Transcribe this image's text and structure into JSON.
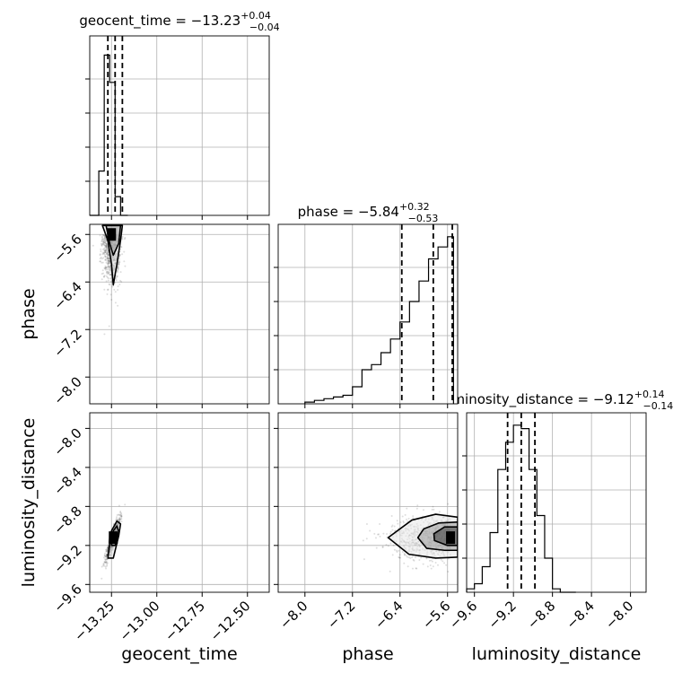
{
  "chart_data": {
    "type": "corner",
    "parameters": [
      "geocent_time",
      "phase",
      "luminosity_distance"
    ],
    "axis_labels": {
      "x": [
        "geocent_time",
        "phase",
        "luminosity_distance"
      ],
      "y": [
        "phase",
        "luminosity_distance"
      ]
    },
    "ranges": {
      "geocent_time": [
        -13.37,
        -12.38
      ],
      "phase": [
        -8.45,
        -5.43
      ],
      "luminosity_distance": [
        -9.68,
        -7.84
      ]
    },
    "ticks": {
      "geocent_time": [
        "-13.25",
        "-13.00",
        "-12.75",
        "-12.50"
      ],
      "phase": [
        "-8.0",
        "-7.2",
        "-6.4",
        "-5.6"
      ],
      "luminosity_distance": [
        "-9.6",
        "-9.2",
        "-8.8",
        "-8.4",
        "-8.0"
      ]
    },
    "tick_values": {
      "geocent_time": [
        -13.25,
        -13.0,
        -12.75,
        -12.5
      ],
      "phase": [
        -8.0,
        -7.2,
        -6.4,
        -5.6
      ],
      "luminosity_distance": [
        -9.6,
        -9.2,
        -8.8,
        -8.4,
        -8.0
      ]
    },
    "summary": {
      "geocent_time": {
        "name": "geocent_time",
        "median": "−13.23",
        "plus": "+0.04",
        "minus": "−0.04"
      },
      "phase": {
        "name": "phase",
        "median": "−5.84",
        "plus": "+0.32",
        "minus": "−0.53"
      },
      "luminosity_distance": {
        "name": "luminosity_distance",
        "median": "−9.12",
        "plus": "+0.14",
        "minus": "−0.14"
      }
    },
    "quantile_lines": {
      "geocent_time": [
        -13.27,
        -13.23,
        -13.19
      ],
      "phase": [
        -6.37,
        -5.84,
        -5.52
      ],
      "luminosity_distance": [
        -9.26,
        -9.12,
        -8.98
      ]
    },
    "histograms": {
      "geocent_time": {
        "edges": [
          -13.37,
          -13.32,
          -13.29,
          -13.26,
          -13.23,
          -13.2,
          -13.16
        ],
        "counts": [
          0.0,
          0.26,
          0.94,
          0.78,
          0.11,
          0.0
        ]
      },
      "phase": {
        "edges": [
          -8.0,
          -7.84,
          -7.68,
          -7.52,
          -7.36,
          -7.2,
          -7.04,
          -6.88,
          -6.72,
          -6.56,
          -6.4,
          -6.24,
          -6.08,
          -5.92,
          -5.76,
          -5.6,
          -5.5
        ],
        "counts": [
          0.01,
          0.02,
          0.03,
          0.04,
          0.05,
          0.1,
          0.2,
          0.23,
          0.3,
          0.38,
          0.48,
          0.6,
          0.72,
          0.85,
          0.92,
          0.98
        ]
      },
      "luminosity_distance": {
        "edges": [
          -9.68,
          -9.6,
          -9.52,
          -9.44,
          -9.36,
          -9.28,
          -9.2,
          -9.12,
          -9.04,
          -8.96,
          -8.88,
          -8.8,
          -8.72,
          -8.64,
          -8.56
        ],
        "counts": [
          0.02,
          0.05,
          0.15,
          0.35,
          0.72,
          0.88,
          0.98,
          0.96,
          0.72,
          0.45,
          0.2,
          0.02,
          0.0,
          0.0
        ]
      }
    },
    "contours": {
      "phase_vs_geocent_time": {
        "x": "geocent_time",
        "y": "phase",
        "peak": [
          -13.25,
          -5.6
        ],
        "levels": [
          [
            [
              -13.3,
              -5.45
            ],
            [
              -13.27,
              -5.7
            ],
            [
              -13.25,
              -6.1
            ],
            [
              -13.24,
              -6.45
            ],
            [
              -13.22,
              -6.1
            ],
            [
              -13.2,
              -5.7
            ],
            [
              -13.19,
              -5.45
            ]
          ],
          [
            [
              -13.28,
              -5.45
            ],
            [
              -13.26,
              -5.75
            ],
            [
              -13.24,
              -5.95
            ],
            [
              -13.21,
              -5.75
            ],
            [
              -13.2,
              -5.45
            ]
          ]
        ]
      },
      "luminosity_distance_vs_geocent_time": {
        "x": "geocent_time",
        "y": "luminosity_distance",
        "peak": [
          -13.24,
          -9.12
        ],
        "levels": [
          [
            [
              -13.27,
              -9.33
            ],
            [
              -13.25,
              -9.05
            ],
            [
              -13.22,
              -8.95
            ],
            [
              -13.2,
              -8.98
            ],
            [
              -13.21,
              -9.1
            ],
            [
              -13.24,
              -9.33
            ]
          ],
          [
            [
              -13.25,
              -9.2
            ],
            [
              -13.24,
              -9.05
            ],
            [
              -13.22,
              -9.0
            ],
            [
              -13.21,
              -9.06
            ],
            [
              -13.23,
              -9.2
            ]
          ]
        ]
      },
      "luminosity_distance_vs_phase": {
        "x": "phase",
        "y": "luminosity_distance",
        "peak": [
          -5.55,
          -9.12
        ],
        "levels": [
          [
            [
              -5.43,
              -8.91
            ],
            [
              -5.8,
              -8.88
            ],
            [
              -6.2,
              -8.94
            ],
            [
              -6.6,
              -9.12
            ],
            [
              -6.25,
              -9.29
            ],
            [
              -5.8,
              -9.33
            ],
            [
              -5.43,
              -9.32
            ]
          ],
          [
            [
              -5.43,
              -8.96
            ],
            [
              -5.75,
              -8.97
            ],
            [
              -6.0,
              -9.03
            ],
            [
              -6.1,
              -9.12
            ],
            [
              -5.95,
              -9.23
            ],
            [
              -5.65,
              -9.25
            ],
            [
              -5.43,
              -9.25
            ]
          ],
          [
            [
              -5.43,
              -9.01
            ],
            [
              -5.65,
              -9.01
            ],
            [
              -5.83,
              -9.08
            ],
            [
              -5.82,
              -9.15
            ],
            [
              -5.6,
              -9.2
            ],
            [
              -5.43,
              -9.2
            ]
          ]
        ]
      }
    },
    "grid": true
  }
}
